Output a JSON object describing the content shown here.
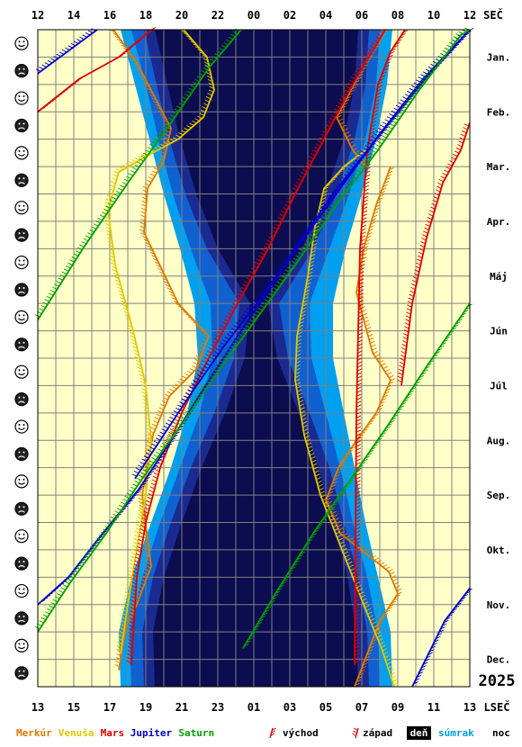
{
  "chart_data": {
    "type": "line",
    "year": "2025",
    "top_axis": {
      "ticks": [
        "12",
        "14",
        "16",
        "18",
        "20",
        "22",
        "00",
        "02",
        "04",
        "06",
        "08",
        "10",
        "12"
      ],
      "unit": "SEČ"
    },
    "bottom_axis": {
      "ticks": [
        "13",
        "15",
        "17",
        "19",
        "21",
        "23",
        "01",
        "03",
        "05",
        "07",
        "09",
        "11",
        "13"
      ],
      "unit": "LSEČ"
    },
    "months": [
      "Jan.",
      "Feb.",
      "Mar.",
      "Apr.",
      "Máj",
      "Jún",
      "Júl",
      "Aug.",
      "Sep.",
      "Okt.",
      "Nov.",
      "Dec."
    ],
    "moon_faces": [
      "☺",
      "☹",
      "☺",
      "☹",
      "☺",
      "☹",
      "☺",
      "☹",
      "☺",
      "☹",
      "☺",
      "☹",
      "☺",
      "☹",
      "☺",
      "☹",
      "☺",
      "☹",
      "☺",
      "☹",
      "☺",
      "☹",
      "☺",
      "☹"
    ],
    "x_unit": "hour (SEČ, 12 → 12 next day)",
    "y_unit": "month of 2025",
    "darkness": {
      "month": [
        0,
        1,
        2,
        3,
        4,
        5,
        6,
        7,
        8,
        9,
        10,
        11,
        12
      ],
      "civil_evening": [
        16.6,
        17.4,
        18.2,
        19.0,
        19.9,
        20.7,
        20.9,
        20.3,
        19.4,
        18.3,
        17.2,
        16.5,
        16.6
      ],
      "nautical_evening": [
        17.2,
        18.0,
        18.7,
        19.5,
        20.5,
        21.6,
        21.7,
        21.0,
        19.9,
        18.8,
        17.8,
        17.1,
        17.2
      ],
      "astro_evening": [
        17.9,
        18.6,
        19.3,
        20.2,
        21.4,
        23.2,
        22.9,
        21.8,
        20.5,
        19.4,
        18.4,
        17.8,
        17.9
      ],
      "astro_morning": [
        30.4,
        30.2,
        29.6,
        28.6,
        27.3,
        25.4,
        25.9,
        27.1,
        28.2,
        29.0,
        29.8,
        30.3,
        30.4
      ],
      "nautical_morning": [
        31.0,
        30.8,
        30.2,
        29.3,
        28.2,
        27.1,
        27.2,
        28.0,
        28.8,
        29.5,
        30.3,
        30.9,
        31.0
      ],
      "civil_morning": [
        31.7,
        31.4,
        30.8,
        30.0,
        29.1,
        28.4,
        28.4,
        29.0,
        29.6,
        30.2,
        30.9,
        31.6,
        31.7
      ]
    },
    "series": [
      {
        "name": "Merkúr",
        "color": "#e07800",
        "segments": [
          {
            "event": "rise",
            "x": [
              31.3,
              30.2,
              28.6,
              29.5,
              30.2
            ],
            "month": [
              0.0,
              0.6,
              1.6,
              2.2,
              2.5
            ]
          },
          {
            "event": "set",
            "x": [
              16.2,
              17.5,
              19.4,
              19.0,
              18.1,
              17.9,
              19.8,
              21.5,
              20.8,
              19.3,
              18.4,
              17.8,
              18.3,
              17.5,
              16.9,
              16.5
            ],
            "month": [
              0.0,
              0.6,
              1.8,
              2.4,
              2.9,
              3.7,
              5.0,
              5.6,
              6.2,
              6.7,
              7.4,
              8.5,
              9.8,
              10.5,
              10.9,
              11.7
            ]
          },
          {
            "event": "rise",
            "x": [
              31.6,
              30.8,
              30.1,
              29.7,
              30.6,
              31.6,
              30.8,
              29.7,
              28.7,
              28.0,
              28.8,
              31.5,
              32.0,
              31.0,
              30.3,
              29.6
            ],
            "month": [
              2.5,
              3.2,
              4.0,
              4.8,
              5.9,
              6.4,
              7.0,
              7.5,
              8.0,
              8.6,
              9.2,
              9.9,
              10.3,
              10.8,
              11.4,
              12.0
            ]
          }
        ]
      },
      {
        "name": "Venuša",
        "color": "#e0c800",
        "segments": [
          {
            "event": "set",
            "x": [
              20.1,
              21.4,
              21.8,
              21.2,
              19.8,
              18.1,
              16.5,
              15.9,
              16.3,
              17.3,
              18.0,
              18.3,
              18.0,
              17.5,
              17.0,
              16.6
            ],
            "month": [
              0.0,
              0.5,
              1.1,
              1.6,
              2.0,
              2.3,
              2.6,
              3.3,
              4.3,
              5.5,
              6.5,
              7.5,
              8.5,
              9.5,
              10.5,
              11.4
            ]
          },
          {
            "event": "rise",
            "x": [
              30.2,
              29.0,
              27.9,
              27.4,
              27.0,
              26.4,
              26.3,
              26.8,
              27.7,
              28.9,
              30.1,
              31.1,
              31.8
            ],
            "month": [
              2.2,
              2.5,
              2.9,
              3.6,
              4.5,
              5.6,
              6.4,
              7.4,
              8.5,
              9.5,
              10.5,
              11.3,
              12.0
            ]
          }
        ]
      },
      {
        "name": "Mars",
        "color": "#e00000",
        "segments": [
          {
            "event": "rise",
            "x": [
              12.0,
              14.3,
              16.5,
              18.3
            ],
            "month": [
              1.5,
              0.9,
              0.5,
              0.0
            ]
          },
          {
            "event": "set",
            "x": [
              31.3,
              29.5,
              27.9,
              26.3,
              24.8,
              23.1,
              21.5,
              20.0,
              18.8,
              18.0,
              17.5,
              17.2
            ],
            "month": [
              0.0,
              1.0,
              2.0,
              3.0,
              4.0,
              5.0,
              6.0,
              7.0,
              8.0,
              9.0,
              10.0,
              11.6
            ]
          },
          {
            "event": "rise",
            "x": [
              32.4,
              31.6,
              30.9,
              30.3,
              29.9,
              29.7,
              29.6
            ],
            "month": [
              0.0,
              0.4,
              1.0,
              2.2,
              4.0,
              7.0,
              11.6
            ]
          },
          {
            "event": "set",
            "x": [
              36.0,
              35.5,
              34.5,
              33.6,
              32.8,
              32.2
            ],
            "month": [
              1.7,
              2.2,
              2.8,
              3.8,
              5.0,
              6.5
            ]
          }
        ]
      },
      {
        "name": "Jupiter",
        "color": "#0000cc",
        "segments": [
          {
            "event": "set",
            "x": [
              12.0,
              15.3
            ],
            "month": [
              0.8,
              0.0
            ]
          },
          {
            "event": "set",
            "x": [
              36.0,
              33.4,
              31.0,
              28.8,
              26.6,
              24.4,
              22.3,
              20.4,
              18.6,
              17.4
            ],
            "month": [
              0.0,
              0.9,
              1.9,
              2.9,
              3.9,
              4.9,
              5.8,
              6.7,
              7.6,
              8.2
            ]
          },
          {
            "event": "rise",
            "x": [
              12.0,
              13.7,
              15.6,
              17.6,
              19.6,
              21.7,
              23.9,
              26.1,
              28.4,
              30.8,
              33.5,
              36.0
            ],
            "month": [
              10.5,
              10.0,
              9.2,
              8.4,
              7.4,
              6.3,
              5.2,
              4.1,
              3.0,
              2.0,
              0.9,
              0.0
            ]
          },
          {
            "event": "rise",
            "x": [
              36.0,
              34.6,
              32.8
            ],
            "month": [
              10.2,
              10.8,
              12.0
            ]
          }
        ]
      },
      {
        "name": "Saturn",
        "color": "#00a000",
        "segments": [
          {
            "event": "set",
            "x": [
              12.0,
              14.5,
              17.0,
              19.4,
              21.5,
              23.3
            ],
            "month": [
              5.3,
              4.0,
              2.8,
              1.7,
              0.7,
              0.0
            ]
          },
          {
            "event": "rise",
            "x": [
              36.0,
              33.7,
              31.5,
              29.4,
              27.3,
              25.2,
              23.4
            ],
            "month": [
              5.0,
              6.1,
              7.2,
              8.2,
              9.2,
              10.3,
              11.3
            ]
          },
          {
            "event": "set",
            "x": [
              12.0,
              13.8,
              15.8,
              17.8,
              19.8,
              21.9,
              24.1,
              26.3,
              28.6,
              30.9,
              33.2,
              35.5,
              36.0
            ],
            "month": [
              11.0,
              10.1,
              9.2,
              8.2,
              7.3,
              6.3,
              5.3,
              4.3,
              3.2,
              2.2,
              1.1,
              0.1,
              0.0
            ]
          }
        ]
      }
    ],
    "legend": {
      "planets": [
        {
          "label": "Merkúr",
          "color": "#e07800"
        },
        {
          "label": "Venuša",
          "color": "#e0c800"
        },
        {
          "label": "Mars",
          "color": "#e00000"
        },
        {
          "label": "Jupiter",
          "color": "#0000cc"
        },
        {
          "label": "Saturn",
          "color": "#00a000"
        }
      ],
      "rise_label": "východ",
      "set_label": "západ",
      "day_label": "deň",
      "twilight_label": "súmrak",
      "night_label": "noc"
    },
    "colors": {
      "day": "#ffffc8",
      "civil": "#00a0f0",
      "nautical": "#1060d0",
      "astronomical": "#1a2a90",
      "night": "#0c0c50",
      "grid": "#808080",
      "twilight_text": "#00a0e0"
    },
    "grid": true
  }
}
